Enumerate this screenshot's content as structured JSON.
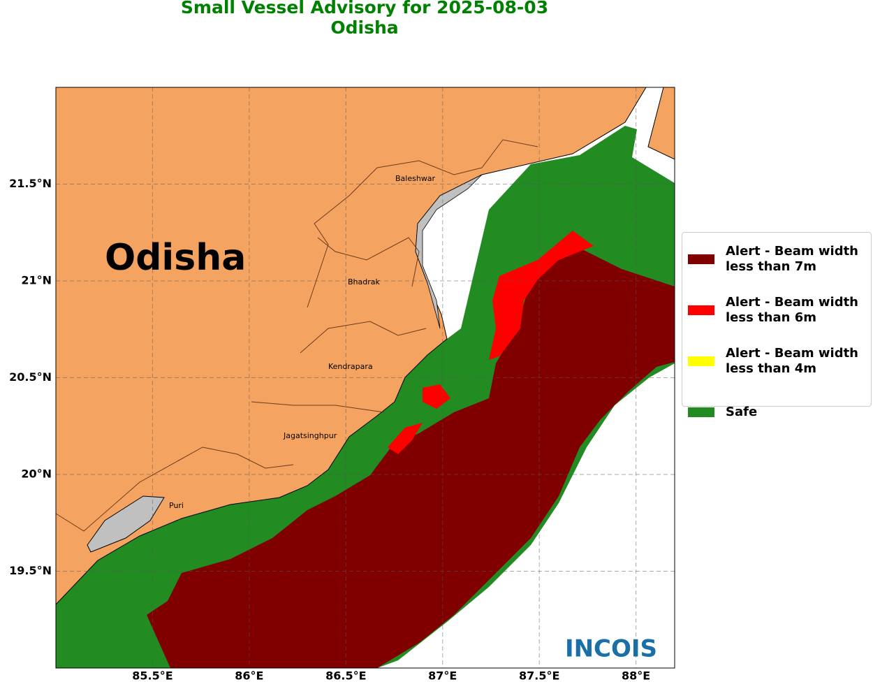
{
  "header": {
    "title": "Small Vessel Advisory for 2025-08-03",
    "subtitle": "Odisha"
  },
  "map": {
    "region_label": "Odisha",
    "places": [
      "Baleshwar",
      "Bhadrak",
      "Kendrapara",
      "Jagatsinghpur",
      "Puri"
    ],
    "lon_range": [
      85,
      88.2
    ],
    "lat_range": [
      19,
      22
    ],
    "lon_ticks": [
      {
        "value": 85.5,
        "label": "85.5°E"
      },
      {
        "value": 86,
        "label": "86°E"
      },
      {
        "value": 86.5,
        "label": "86.5°E"
      },
      {
        "value": 87,
        "label": "87°E"
      },
      {
        "value": 87.5,
        "label": "87.5°E"
      },
      {
        "value": 88,
        "label": "88°E"
      }
    ],
    "lat_ticks": [
      {
        "value": 19.5,
        "label": "19.5°N"
      },
      {
        "value": 20,
        "label": "20°N"
      },
      {
        "value": 20.5,
        "label": "20.5°N"
      },
      {
        "value": 21,
        "label": "21°N"
      },
      {
        "value": 21.5,
        "label": "21.5°N"
      }
    ]
  },
  "legend": [
    {
      "label": "Alert - Beam width less than 7m",
      "color": "#800000"
    },
    {
      "label": "Alert - Beam width less than 6m",
      "color": "#ff0000"
    },
    {
      "label": "Alert - Beam width less than 4m",
      "color": "#ffff00"
    },
    {
      "label": "Safe",
      "color": "#228b22"
    }
  ],
  "logo": "INCOIS"
}
